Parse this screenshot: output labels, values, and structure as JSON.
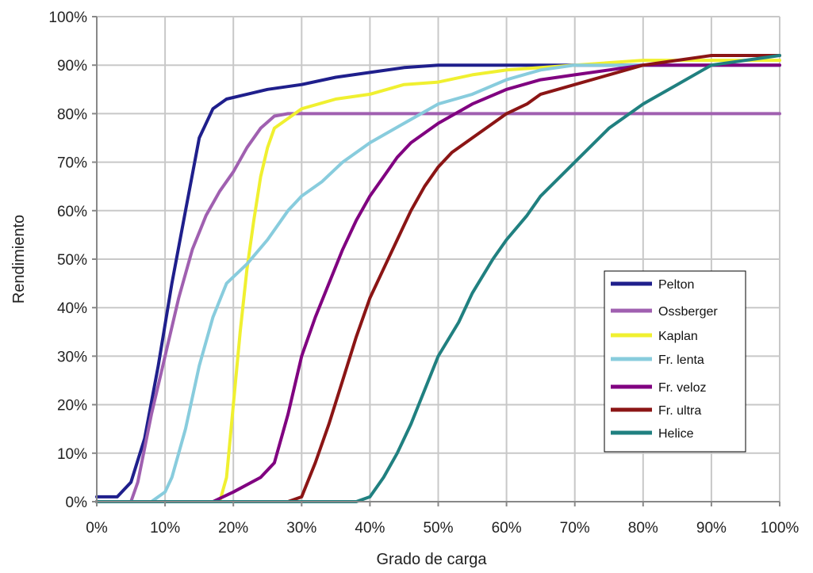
{
  "chart_data": {
    "type": "line",
    "title": "",
    "xlabel": "Grado de carga",
    "ylabel": "Rendimiento",
    "xlim": [
      0,
      100
    ],
    "ylim": [
      0,
      100
    ],
    "x_ticks": [
      "0%",
      "10%",
      "20%",
      "30%",
      "40%",
      "50%",
      "60%",
      "70%",
      "80%",
      "90%",
      "100%"
    ],
    "y_ticks": [
      "0%",
      "10%",
      "20%",
      "30%",
      "40%",
      "50%",
      "60%",
      "70%",
      "80%",
      "90%",
      "100%"
    ],
    "grid": true,
    "legend_position": "bottom-right",
    "series": [
      {
        "name": "Pelton",
        "color": "#1f1f8c",
        "points": [
          [
            0,
            1
          ],
          [
            3,
            1
          ],
          [
            5,
            4
          ],
          [
            7,
            13
          ],
          [
            9,
            28
          ],
          [
            11,
            45
          ],
          [
            13,
            60
          ],
          [
            15,
            75
          ],
          [
            17,
            81
          ],
          [
            19,
            83
          ],
          [
            22,
            84
          ],
          [
            25,
            85
          ],
          [
            30,
            86
          ],
          [
            35,
            87.5
          ],
          [
            40,
            88.5
          ],
          [
            45,
            89.5
          ],
          [
            50,
            90
          ],
          [
            55,
            90
          ],
          [
            60,
            90
          ],
          [
            65,
            90
          ],
          [
            70,
            90
          ],
          [
            80,
            90
          ],
          [
            90,
            90
          ],
          [
            100,
            90
          ]
        ]
      },
      {
        "name": "Ossberger",
        "color": "#a060b0",
        "points": [
          [
            0,
            0
          ],
          [
            5,
            0
          ],
          [
            6,
            4
          ],
          [
            8,
            18
          ],
          [
            10,
            30
          ],
          [
            12,
            42
          ],
          [
            14,
            52
          ],
          [
            16,
            59
          ],
          [
            18,
            64
          ],
          [
            20,
            68
          ],
          [
            22,
            73
          ],
          [
            24,
            77
          ],
          [
            26,
            79.5
          ],
          [
            28,
            80
          ],
          [
            30,
            80
          ],
          [
            40,
            80
          ],
          [
            50,
            80
          ],
          [
            60,
            80
          ],
          [
            70,
            80
          ],
          [
            80,
            80
          ],
          [
            90,
            80
          ],
          [
            100,
            80
          ]
        ]
      },
      {
        "name": "Kaplan",
        "color": "#f0f030",
        "points": [
          [
            0,
            0
          ],
          [
            18,
            0
          ],
          [
            19,
            5
          ],
          [
            20,
            20
          ],
          [
            21,
            35
          ],
          [
            22,
            48
          ],
          [
            23,
            58
          ],
          [
            24,
            67
          ],
          [
            25,
            73
          ],
          [
            26,
            77
          ],
          [
            28,
            79
          ],
          [
            30,
            81
          ],
          [
            35,
            83
          ],
          [
            40,
            84
          ],
          [
            45,
            86
          ],
          [
            50,
            86.5
          ],
          [
            55,
            88
          ],
          [
            60,
            89
          ],
          [
            65,
            89.5
          ],
          [
            70,
            90
          ],
          [
            80,
            91
          ],
          [
            90,
            91
          ],
          [
            100,
            91
          ]
        ]
      },
      {
        "name": "Fr. lenta",
        "color": "#88ccdd",
        "points": [
          [
            0,
            0
          ],
          [
            8,
            0
          ],
          [
            10,
            2
          ],
          [
            11,
            5
          ],
          [
            13,
            15
          ],
          [
            15,
            28
          ],
          [
            17,
            38
          ],
          [
            19,
            45
          ],
          [
            22,
            49
          ],
          [
            25,
            54
          ],
          [
            28,
            60
          ],
          [
            30,
            63
          ],
          [
            33,
            66
          ],
          [
            36,
            70
          ],
          [
            40,
            74
          ],
          [
            45,
            78
          ],
          [
            50,
            82
          ],
          [
            55,
            84
          ],
          [
            60,
            87
          ],
          [
            65,
            89
          ],
          [
            70,
            90
          ],
          [
            75,
            90
          ],
          [
            80,
            90
          ],
          [
            90,
            90
          ],
          [
            100,
            90
          ]
        ]
      },
      {
        "name": "Fr. veloz",
        "color": "#800080",
        "points": [
          [
            0,
            0
          ],
          [
            17,
            0
          ],
          [
            20,
            2
          ],
          [
            24,
            5
          ],
          [
            26,
            8
          ],
          [
            28,
            18
          ],
          [
            30,
            30
          ],
          [
            32,
            38
          ],
          [
            34,
            45
          ],
          [
            36,
            52
          ],
          [
            38,
            58
          ],
          [
            40,
            63
          ],
          [
            42,
            67
          ],
          [
            44,
            71
          ],
          [
            46,
            74
          ],
          [
            48,
            76
          ],
          [
            50,
            78
          ],
          [
            55,
            82
          ],
          [
            60,
            85
          ],
          [
            65,
            87
          ],
          [
            70,
            88
          ],
          [
            75,
            89
          ],
          [
            80,
            90
          ],
          [
            90,
            90
          ],
          [
            100,
            90
          ]
        ]
      },
      {
        "name": "Fr. ultra",
        "color": "#8b1515",
        "points": [
          [
            0,
            0
          ],
          [
            28,
            0
          ],
          [
            30,
            1
          ],
          [
            32,
            8
          ],
          [
            34,
            16
          ],
          [
            36,
            25
          ],
          [
            38,
            34
          ],
          [
            40,
            42
          ],
          [
            42,
            48
          ],
          [
            44,
            54
          ],
          [
            46,
            60
          ],
          [
            48,
            65
          ],
          [
            50,
            69
          ],
          [
            52,
            72
          ],
          [
            55,
            75
          ],
          [
            58,
            78
          ],
          [
            60,
            80
          ],
          [
            63,
            82
          ],
          [
            65,
            84
          ],
          [
            70,
            86
          ],
          [
            75,
            88
          ],
          [
            80,
            90
          ],
          [
            85,
            91
          ],
          [
            90,
            92
          ],
          [
            95,
            92
          ],
          [
            100,
            92
          ]
        ]
      },
      {
        "name": "Helice",
        "color": "#208080",
        "points": [
          [
            0,
            0
          ],
          [
            38,
            0
          ],
          [
            40,
            1
          ],
          [
            42,
            5
          ],
          [
            44,
            10
          ],
          [
            46,
            16
          ],
          [
            48,
            23
          ],
          [
            50,
            30
          ],
          [
            53,
            37
          ],
          [
            55,
            43
          ],
          [
            58,
            50
          ],
          [
            60,
            54
          ],
          [
            63,
            59
          ],
          [
            65,
            63
          ],
          [
            70,
            70
          ],
          [
            75,
            77
          ],
          [
            80,
            82
          ],
          [
            85,
            86
          ],
          [
            90,
            90
          ],
          [
            95,
            91
          ],
          [
            100,
            92
          ]
        ]
      }
    ]
  }
}
